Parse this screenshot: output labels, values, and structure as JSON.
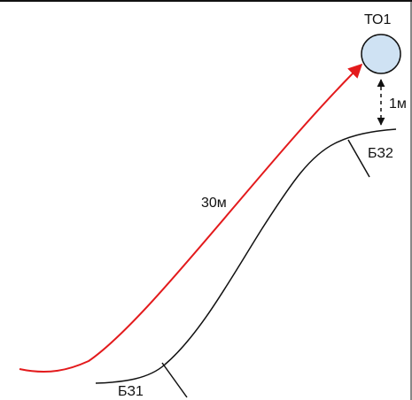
{
  "diagram": {
    "target_label": "ТО1",
    "vertical_distance_label": "1м",
    "path_distance_label": "30м",
    "boundary_1_label": "БЗ1",
    "boundary_2_label": "БЗ2"
  },
  "colors": {
    "path": "#e31a1c",
    "slope": "#111111",
    "target_fill": "#cfe2f3",
    "target_stroke": "#111111",
    "dashed": "#111111",
    "frame": "#111111"
  }
}
